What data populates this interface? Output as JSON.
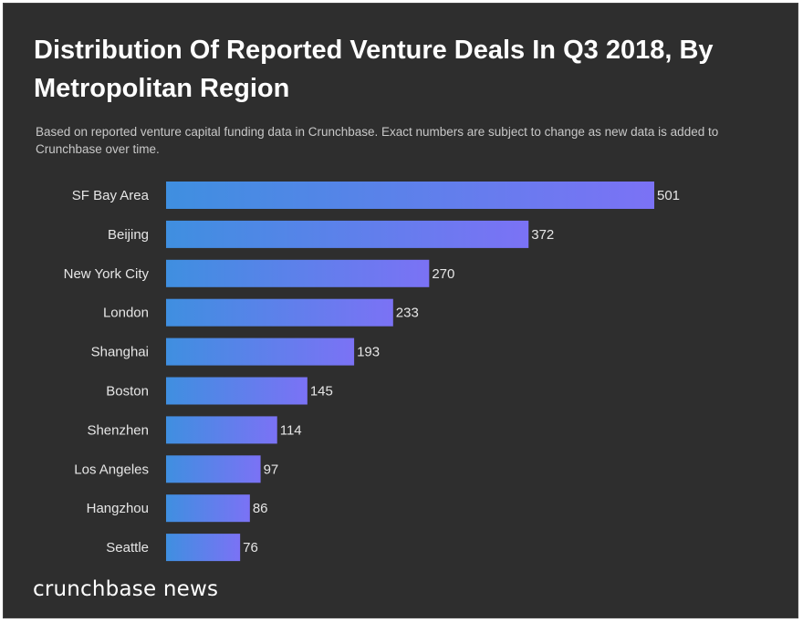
{
  "chart_data": {
    "type": "bar",
    "orientation": "horizontal",
    "title": "Distribution Of Reported Venture Deals In Q3 2018, By Metropolitan Region",
    "subtitle": "Based on reported venture capital funding data in Crunchbase. Exact numbers are subject to change as new data is added to Crunchbase over time.",
    "categories": [
      "SF Bay Area",
      "Beijing",
      "New York City",
      "London",
      "Shanghai",
      "Boston",
      "Shenzhen",
      "Los Angeles",
      "Hangzhou",
      "Seattle"
    ],
    "values": [
      501,
      372,
      270,
      233,
      193,
      145,
      114,
      97,
      86,
      76
    ],
    "xlabel": "",
    "ylabel": "",
    "xlim": [
      0,
      501
    ],
    "grid": false,
    "colors": {
      "bar_start": "#3f8fe0",
      "bar_end": "#7b72f5",
      "background": "#2e2e2e",
      "text": "#e6e6e6"
    }
  },
  "footer": {
    "logo_text": "crunchbase news"
  }
}
